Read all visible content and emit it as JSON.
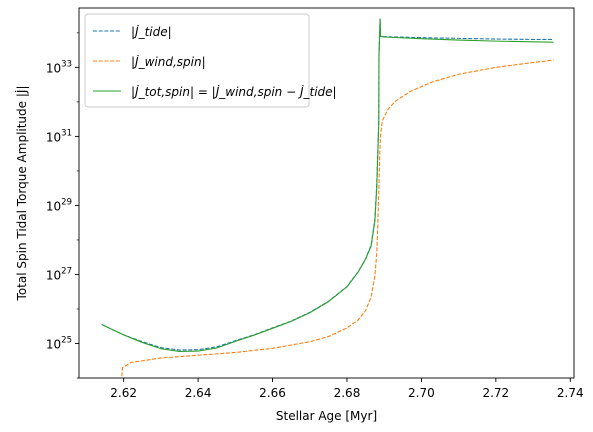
{
  "chart_data": {
    "type": "line",
    "xlabel": "Stellar Age [Myr]",
    "ylabel": "Total Spin Tidal Torque Amplitude |J̇|",
    "xlim": [
      2.608,
      2.741
    ],
    "ylim_log10": [
      24.0,
      34.72
    ],
    "y_scale": "log",
    "grid": false,
    "legend_position": "upper-left",
    "x_ticks": [
      2.62,
      2.64,
      2.66,
      2.68,
      2.7,
      2.72,
      2.74
    ],
    "x_tick_labels": [
      "2.62",
      "2.64",
      "2.66",
      "2.68",
      "2.70",
      "2.72",
      "2.74"
    ],
    "y_ticks_log10": [
      25,
      27,
      29,
      31,
      33
    ],
    "y_tick_labels": [
      {
        "base": "10",
        "exp": "25"
      },
      {
        "base": "10",
        "exp": "27"
      },
      {
        "base": "10",
        "exp": "29"
      },
      {
        "base": "10",
        "exp": "31"
      },
      {
        "base": "10",
        "exp": "33"
      }
    ],
    "series": [
      {
        "name": "|J̇_tide|",
        "color": "#1f77b4",
        "dash": "dashed",
        "x": [
          2.6141,
          2.62,
          2.625,
          2.63,
          2.635,
          2.64,
          2.645,
          2.65,
          2.655,
          2.66,
          2.665,
          2.67,
          2.675,
          2.68,
          2.683,
          2.685,
          2.6865,
          2.6875,
          2.688,
          2.68855,
          2.6886,
          2.6888,
          2.6889,
          2.689,
          2.69,
          2.7,
          2.71,
          2.72,
          2.73,
          2.7355
        ],
        "y_log10": [
          25.55,
          25.25,
          25.05,
          24.88,
          24.81,
          24.82,
          24.9,
          25.08,
          25.25,
          25.45,
          25.65,
          25.9,
          26.22,
          26.65,
          27.08,
          27.45,
          27.85,
          28.6,
          29.6,
          31.5,
          33.4,
          34.05,
          34.4,
          33.91,
          33.89,
          33.86,
          33.84,
          33.82,
          33.81,
          33.81
        ]
      },
      {
        "name": "|J̇_wind,spin|",
        "color": "#ff7f0e",
        "dash": "dashed",
        "x": [
          2.6195,
          2.6197,
          2.622,
          2.63,
          2.64,
          2.65,
          2.66,
          2.67,
          2.675,
          2.68,
          2.683,
          2.685,
          2.6865,
          2.6875,
          2.688,
          2.6883,
          2.6886,
          2.6888,
          2.689,
          2.6895,
          2.691,
          2.693,
          2.697,
          2.703,
          2.71,
          2.72,
          2.73,
          2.7355
        ],
        "y_log10": [
          24.05,
          24.3,
          24.45,
          24.58,
          24.66,
          24.74,
          24.86,
          25.05,
          25.2,
          25.45,
          25.68,
          25.95,
          26.35,
          26.95,
          27.6,
          28.5,
          29.6,
          30.45,
          31.0,
          31.45,
          31.78,
          32.02,
          32.3,
          32.58,
          32.8,
          33.0,
          33.14,
          33.21
        ]
      },
      {
        "name": "|J̇_tot,spin| = |J̇_wind,spin − J̇_tide|",
        "color": "#2ca02c",
        "dash": "solid",
        "x": [
          2.6141,
          2.62,
          2.625,
          2.63,
          2.635,
          2.64,
          2.645,
          2.65,
          2.655,
          2.66,
          2.665,
          2.67,
          2.675,
          2.68,
          2.683,
          2.685,
          2.6865,
          2.6875,
          2.688,
          2.68855,
          2.6886,
          2.6888,
          2.6889,
          2.689,
          2.69,
          2.7,
          2.71,
          2.72,
          2.73,
          2.7355
        ],
        "y_log10": [
          25.55,
          25.25,
          25.03,
          24.85,
          24.77,
          24.78,
          24.87,
          25.06,
          25.24,
          25.44,
          25.64,
          25.89,
          26.21,
          26.64,
          27.07,
          27.44,
          27.83,
          28.55,
          29.5,
          31.4,
          33.3,
          34.05,
          34.4,
          33.9,
          33.88,
          33.83,
          33.79,
          33.76,
          33.74,
          33.73
        ]
      }
    ]
  }
}
